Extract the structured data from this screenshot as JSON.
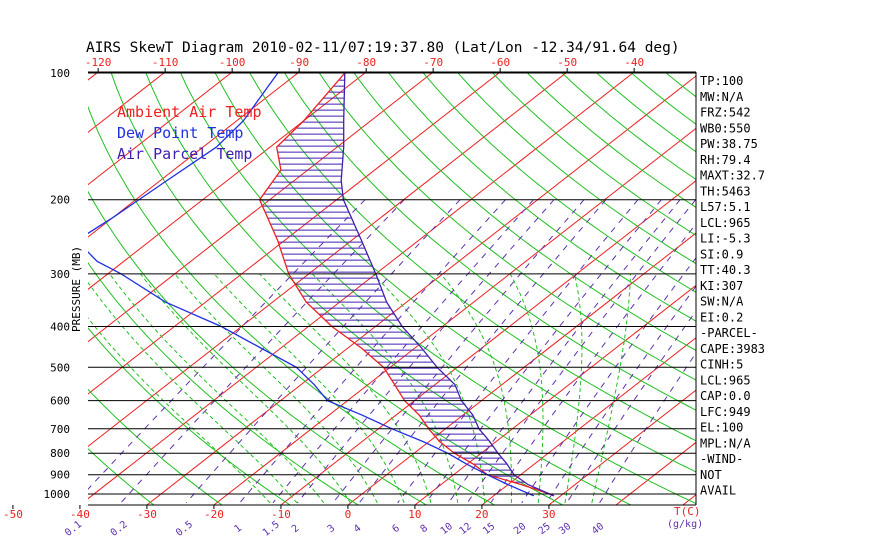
{
  "chart_data": {
    "type": "skewt",
    "title": "AIRS SkewT Diagram 2010-02-11/07:19:37.80 (Lat/Lon -12.34/91.64 deg)",
    "ylabel": "PRESSURE (MB)",
    "xlabel_temp_unit": "T(C)",
    "xlabel_mixing_unit": "(g/kg)",
    "pressure_levels": [
      100,
      200,
      300,
      400,
      500,
      600,
      700,
      800,
      900,
      1000
    ],
    "pressure_range": [
      100,
      1050
    ],
    "top_temp_ticks": [
      -120,
      -110,
      -100,
      -90,
      -80,
      -70,
      -60,
      -50,
      -40
    ],
    "bottom_temp_ticks": [
      -50,
      -40,
      -30,
      -20,
      -10,
      0,
      10,
      20,
      30
    ],
    "mixing_ratio_labels": [
      "0.1",
      "0.2",
      "0.5",
      "1",
      "1.5",
      "2",
      "3",
      "4",
      "6",
      "8",
      "10",
      "12",
      "15",
      "20",
      "25",
      "30",
      "40"
    ],
    "mixing_ratio_values": [
      0.1,
      0.2,
      0.5,
      1,
      1.5,
      2,
      3,
      4,
      6,
      8,
      10,
      12,
      15,
      20,
      25,
      30,
      40
    ],
    "legend": [
      {
        "name": "Ambient Air Temp",
        "color": "#ee2020"
      },
      {
        "name": "Dew Point Temp",
        "color": "#2030e0"
      },
      {
        "name": "Air Parcel Temp",
        "color": "#4020b0"
      }
    ],
    "series": [
      {
        "name": "Ambient Air Temp",
        "color": "#ee2020",
        "points": [
          [
            100,
            -83
          ],
          [
            130,
            -80
          ],
          [
            150,
            -79
          ],
          [
            170,
            -74
          ],
          [
            200,
            -71.5
          ],
          [
            250,
            -61
          ],
          [
            300,
            -53
          ],
          [
            350,
            -45
          ],
          [
            400,
            -36.5
          ],
          [
            450,
            -28
          ],
          [
            500,
            -21
          ],
          [
            550,
            -16
          ],
          [
            600,
            -11.5
          ],
          [
            650,
            -6.5
          ],
          [
            700,
            -2.5
          ],
          [
            750,
            1.5
          ],
          [
            800,
            6
          ],
          [
            850,
            11
          ],
          [
            900,
            15
          ],
          [
            950,
            22
          ],
          [
            1000,
            28
          ],
          [
            1010,
            29
          ]
        ]
      },
      {
        "name": "Dew Point Temp",
        "color": "#2030e0",
        "points": [
          [
            100,
            -93
          ],
          [
            130,
            -89
          ],
          [
            150,
            -88
          ],
          [
            180,
            -89
          ],
          [
            220,
            -90
          ],
          [
            250,
            -91
          ],
          [
            280,
            -84
          ],
          [
            300,
            -78
          ],
          [
            350,
            -66
          ],
          [
            400,
            -53
          ],
          [
            450,
            -43
          ],
          [
            500,
            -34
          ],
          [
            550,
            -28
          ],
          [
            600,
            -23
          ],
          [
            650,
            -15
          ],
          [
            700,
            -8
          ],
          [
            750,
            -1
          ],
          [
            800,
            5
          ],
          [
            850,
            10
          ],
          [
            900,
            15
          ],
          [
            950,
            20
          ],
          [
            1000,
            25
          ],
          [
            1010,
            26
          ]
        ]
      },
      {
        "name": "Air Parcel Temp",
        "color": "#4020b0",
        "points": [
          [
            100,
            -83
          ],
          [
            130,
            -74
          ],
          [
            150,
            -69
          ],
          [
            180,
            -63
          ],
          [
            200,
            -59
          ],
          [
            250,
            -48.5
          ],
          [
            300,
            -40
          ],
          [
            350,
            -33
          ],
          [
            400,
            -26
          ],
          [
            450,
            -19
          ],
          [
            500,
            -13
          ],
          [
            550,
            -7
          ],
          [
            600,
            -3
          ],
          [
            650,
            1.5
          ],
          [
            700,
            5
          ],
          [
            750,
            9
          ],
          [
            800,
            12.5
          ],
          [
            850,
            16
          ],
          [
            900,
            19
          ],
          [
            950,
            23
          ],
          [
            1000,
            28
          ],
          [
            1010,
            29
          ]
        ]
      }
    ],
    "grid": true
  },
  "indices": [
    "TP:100",
    "MW:N/A",
    "FRZ:542",
    "WB0:550",
    "PW:38.75",
    "RH:79.4",
    "MAXT:32.7",
    "TH:5463",
    "L57:5.1",
    "LCL:965",
    "LI:-5.3",
    "SI:0.9",
    "TT:40.3",
    "KI:307",
    "SW:N/A",
    "EI:0.2",
    "-PARCEL-",
    "CAPE:3983",
    "CINH:5",
    "LCL:965",
    "CAP:0.0",
    "LFC:949",
    "EL:100",
    "MPL:N/A",
    "-WIND-",
    "NOT",
    "AVAIL"
  ],
  "colors": {
    "isotherm": "#ee2020",
    "dry_adiabat": "#20c020",
    "moist_adiabat": "#20c020",
    "mixing_ratio": "#6030b0",
    "pressure_line": "#000000",
    "cape_hatch": "#4020b0"
  }
}
